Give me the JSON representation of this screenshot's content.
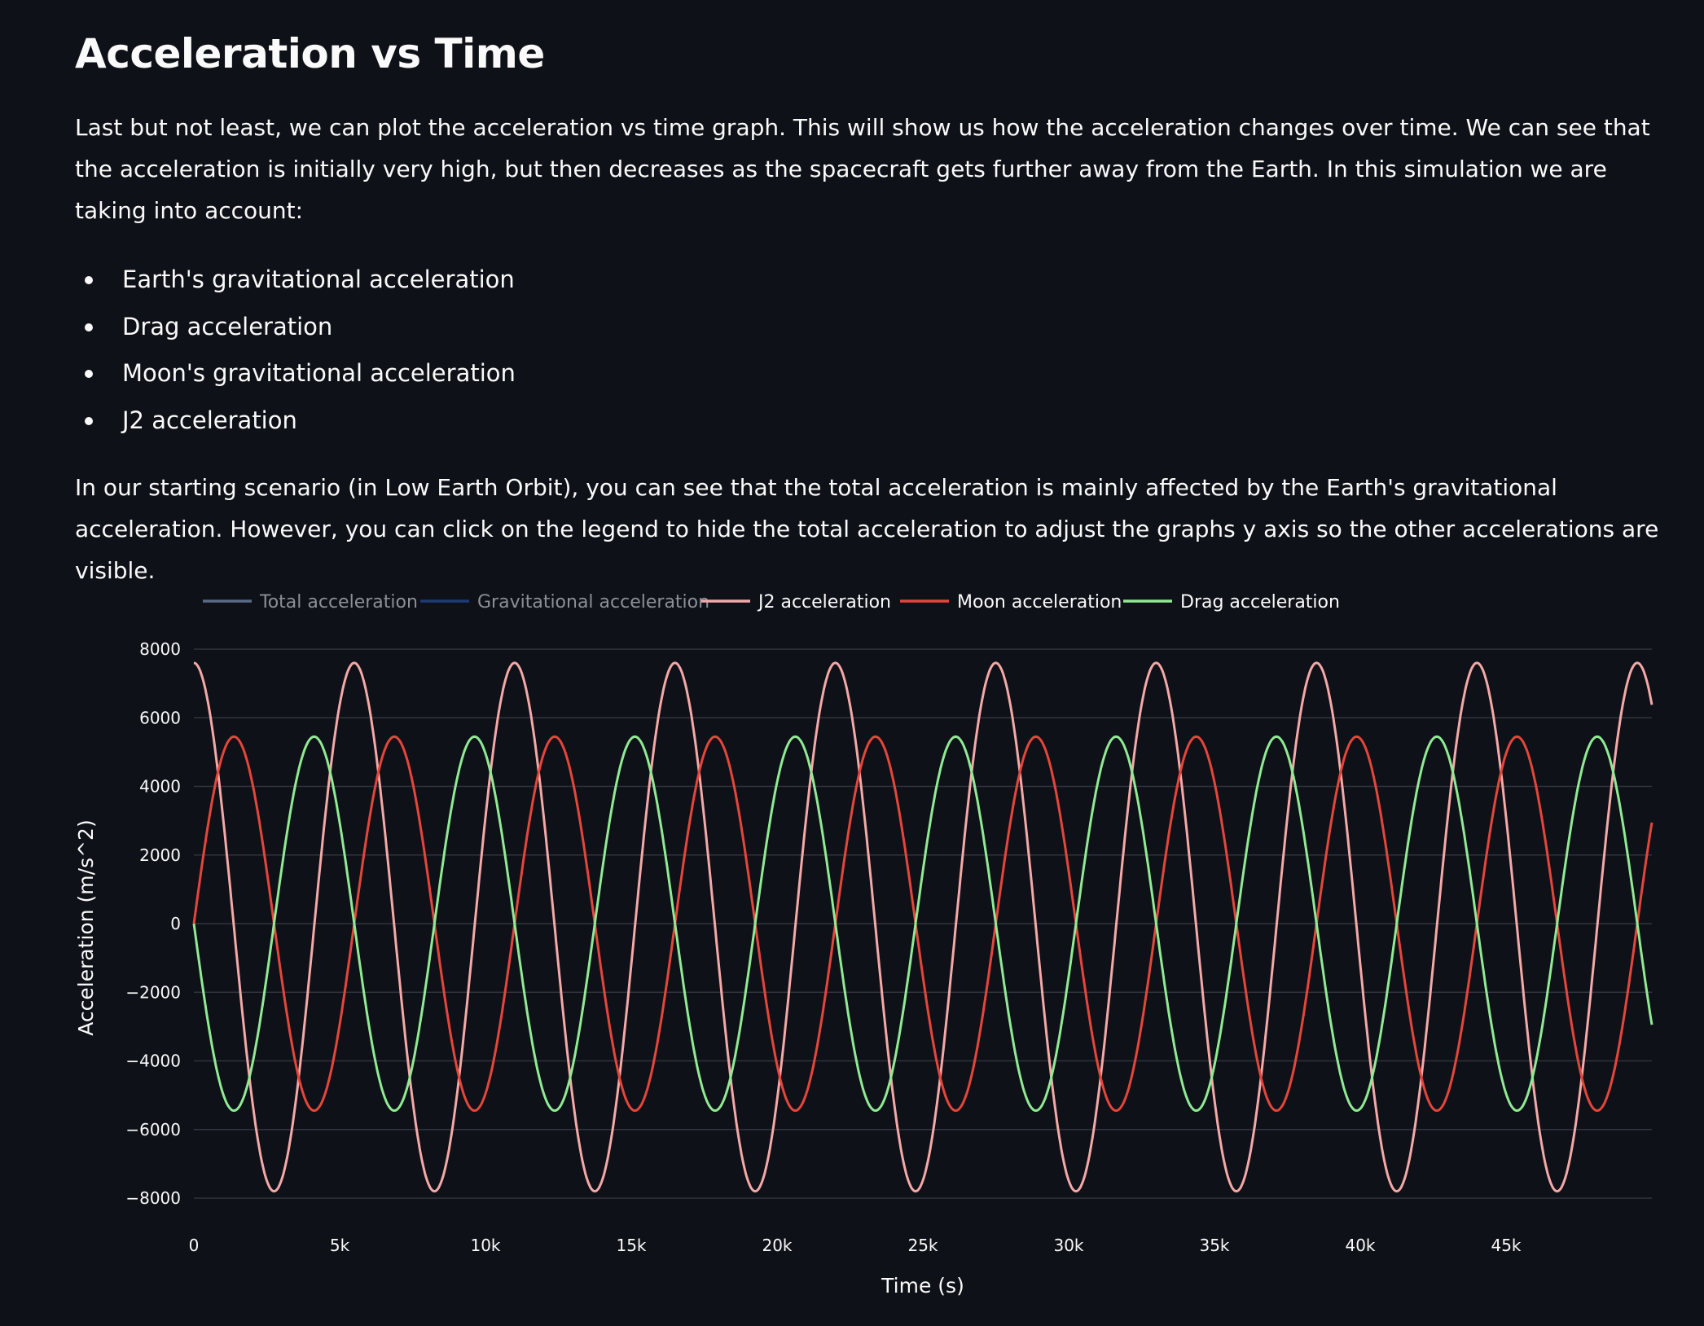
{
  "page": {
    "title": "Acceleration vs Time",
    "intro": "Last but not least, we can plot the acceleration vs time graph. This will show us how the acceleration changes over time. We can see that the acceleration is initially very high, but then decreases as the spacecraft gets further away from the Earth. In this simulation we are taking into account:",
    "bullets": [
      "Earth's gravitational acceleration",
      "Drag acceleration",
      "Moon's gravitational acceleration",
      "J2 acceleration"
    ],
    "outro": "In our starting scenario (in Low Earth Orbit), you can see that the total acceleration is mainly affected by the Earth's gravitational acceleration. However, you can click on the legend to hide the total acceleration to adjust the graphs y axis so the other accelerations are visible."
  },
  "colors": {
    "background": "#0e1117",
    "text": "#fafafa",
    "grid": "#31333f",
    "hidden_legend_text": "#8b8f97"
  },
  "chart_data": {
    "type": "line",
    "xlabel": "Time (s)",
    "ylabel": "Acceleration (m/s^2)",
    "xlim": [
      0,
      50000
    ],
    "ylim": [
      -8000,
      8000
    ],
    "x_ticks": [
      0,
      5000,
      10000,
      15000,
      20000,
      25000,
      30000,
      35000,
      40000,
      45000
    ],
    "x_tick_labels": [
      "0",
      "5k",
      "10k",
      "15k",
      "20k",
      "25k",
      "30k",
      "35k",
      "40k",
      "45k"
    ],
    "y_ticks": [
      8000,
      6000,
      4000,
      2000,
      0,
      -2000,
      -4000,
      -6000,
      -8000
    ],
    "y_tick_labels": [
      "8000",
      "6000",
      "4000",
      "2000",
      "0",
      "−2000",
      "−4000",
      "−6000",
      "−8000"
    ],
    "grid": true,
    "legend_position": "top",
    "series": [
      {
        "name": "Total acceleration",
        "color": "#5b6b86",
        "visible": false
      },
      {
        "name": "Gravitational acceleration",
        "color": "#1f3a78",
        "visible": false
      },
      {
        "name": "J2 acceleration",
        "color": "#f4a9a8",
        "visible": true,
        "amplitude": 7700,
        "period": 5500,
        "phase": 0,
        "form": "cos",
        "offset": -100
      },
      {
        "name": "Moon acceleration",
        "color": "#e5463b",
        "visible": true,
        "amplitude": 5450,
        "period": 5500,
        "phase": 0,
        "form": "sin",
        "offset": 0
      },
      {
        "name": "Drag acceleration",
        "color": "#90ea94",
        "visible": true,
        "amplitude": 5450,
        "period": 5500,
        "phase": 0,
        "form": "-sin",
        "offset": 0
      }
    ]
  }
}
